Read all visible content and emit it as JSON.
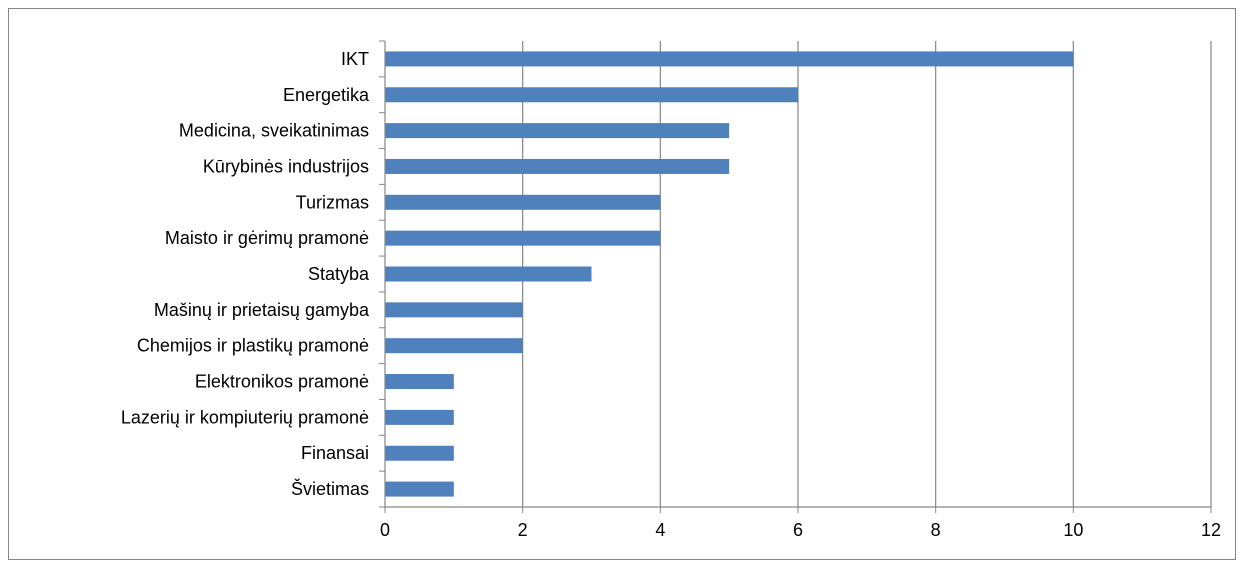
{
  "colors": {
    "bar": "#4f81bd",
    "grid": "#868686",
    "axis": "#868686",
    "text": "#000000"
  },
  "chart_data": {
    "type": "bar",
    "orientation": "horizontal",
    "title": "",
    "xlabel": "",
    "ylabel": "",
    "categories": [
      "IKT",
      "Energetika",
      "Medicina, sveikatinimas",
      "Kūrybinės industrijos",
      "Turizmas",
      "Maisto ir gėrimų pramonė",
      "Statyba",
      "Mašinų ir prietaisų gamyba",
      "Chemijos ir plastikų pramonė",
      "Elektronikos pramonė",
      "Lazerių ir kompiuterių pramonė",
      "Finansai",
      "Švietimas"
    ],
    "values": [
      10,
      6,
      5,
      5,
      4,
      4,
      3,
      2,
      2,
      1,
      1,
      1,
      1
    ],
    "xlim": [
      0,
      12
    ],
    "xticks": [
      0,
      2,
      4,
      6,
      8,
      10,
      12
    ],
    "grid": "vertical-major",
    "legend": "none"
  }
}
